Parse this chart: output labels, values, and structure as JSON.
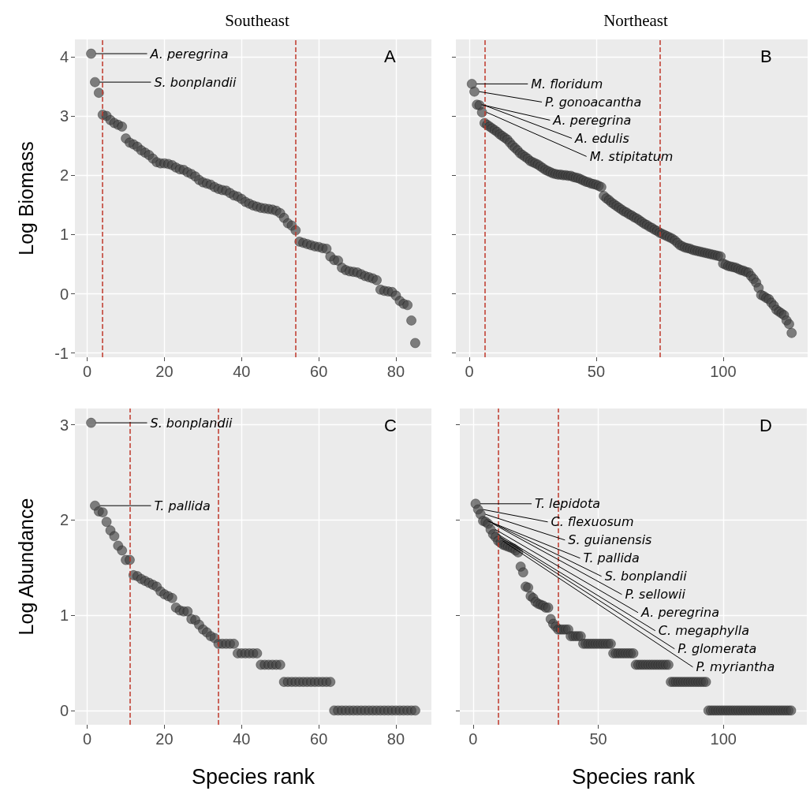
{
  "chart_data": [
    {
      "type": "scatter",
      "title": "Southeast",
      "ylabel": "Log Biomass",
      "xlim": [
        -3.2,
        89.2
      ],
      "xticks": [
        0,
        20,
        40,
        60,
        80
      ],
      "ylim": [
        -1.07,
        4.29
      ],
      "yticks": [
        -1,
        0,
        1,
        2,
        3,
        4
      ],
      "grid": true,
      "marker": "circle",
      "annotations": [
        "A",
        {
          "text": "A. peregrina",
          "x": 1,
          "y": 4.05
        },
        {
          "text": "S. bonplandii",
          "x": 2,
          "y": 3.57
        }
      ],
      "ref_lines": [
        {
          "axis": "x",
          "value": 4,
          "color": "#c0392b",
          "line_style": "dashed"
        },
        {
          "axis": "x",
          "value": 54,
          "color": "#c0392b",
          "line_style": "dashed"
        }
      ],
      "series": [
        {
          "color": "#404040",
          "x": [
            1,
            2,
            3,
            4,
            5,
            6,
            7,
            8,
            9,
            10,
            11,
            12,
            13,
            14,
            15,
            16,
            17,
            18,
            19,
            20,
            21,
            22,
            23,
            24,
            25,
            26,
            27,
            28,
            29,
            30,
            31,
            32,
            33,
            34,
            35,
            36,
            37,
            38,
            39,
            40,
            41,
            42,
            43,
            44,
            45,
            46,
            47,
            48,
            49,
            50,
            51,
            52,
            53,
            54,
            55,
            56,
            57,
            58,
            59,
            60,
            61,
            62,
            63,
            64,
            65,
            66,
            67,
            68,
            69,
            70,
            71,
            72,
            73,
            74,
            75,
            76,
            77,
            78,
            79,
            80,
            81,
            82,
            83,
            84,
            85
          ],
          "values": [
            4.05,
            3.57,
            3.39,
            3.02,
            3.0,
            2.93,
            2.88,
            2.85,
            2.82,
            2.62,
            2.55,
            2.52,
            2.48,
            2.42,
            2.38,
            2.34,
            2.28,
            2.22,
            2.2,
            2.2,
            2.19,
            2.17,
            2.13,
            2.1,
            2.09,
            2.05,
            2.02,
            1.98,
            1.92,
            1.88,
            1.86,
            1.84,
            1.8,
            1.77,
            1.75,
            1.74,
            1.7,
            1.66,
            1.64,
            1.6,
            1.55,
            1.52,
            1.49,
            1.47,
            1.45,
            1.44,
            1.43,
            1.42,
            1.4,
            1.36,
            1.28,
            1.19,
            1.15,
            1.07,
            0.88,
            0.86,
            0.84,
            0.82,
            0.8,
            0.79,
            0.77,
            0.76,
            0.63,
            0.57,
            0.56,
            0.44,
            0.4,
            0.38,
            0.37,
            0.36,
            0.33,
            0.3,
            0.28,
            0.26,
            0.23,
            0.07,
            0.05,
            0.04,
            0.03,
            -0.03,
            -0.12,
            -0.17,
            -0.19,
            -0.45,
            -0.83
          ]
        }
      ]
    },
    {
      "type": "scatter",
      "title": "Northeast",
      "xlim": [
        -5.3,
        133.3
      ],
      "xticks": [
        0,
        50,
        100
      ],
      "ylim": [
        -1.07,
        4.29
      ],
      "yticks": [
        -1,
        0,
        1,
        2,
        3,
        4
      ],
      "tick_labels": "x",
      "grid": true,
      "marker": "circle",
      "annotations": [
        "B",
        {
          "text": "M. floridum",
          "x": 1,
          "y": 3.54
        },
        {
          "text": "P. gonoacantha",
          "x": 2,
          "y": 3.41
        },
        {
          "text": "A. peregrina",
          "x": 3,
          "y": 3.19
        },
        {
          "text": "A. edulis",
          "x": 4,
          "y": 3.18
        },
        {
          "text": "M. stipitatum",
          "x": 5,
          "y": 3.06
        }
      ],
      "ref_lines": [
        {
          "axis": "x",
          "value": 6,
          "color": "#c0392b",
          "line_style": "dashed"
        },
        {
          "axis": "x",
          "value": 75,
          "color": "#c0392b",
          "line_style": "dashed"
        }
      ],
      "series": [
        {
          "color": "#404040",
          "x": [
            1,
            2,
            3,
            4,
            5,
            6,
            7,
            8,
            9,
            10,
            11,
            12,
            13,
            14,
            15,
            16,
            17,
            18,
            19,
            20,
            21,
            22,
            23,
            24,
            25,
            26,
            27,
            28,
            29,
            30,
            31,
            32,
            33,
            34,
            35,
            36,
            37,
            38,
            39,
            40,
            41,
            42,
            43,
            44,
            45,
            46,
            47,
            48,
            49,
            50,
            51,
            52,
            53,
            54,
            55,
            56,
            57,
            58,
            59,
            60,
            61,
            62,
            63,
            64,
            65,
            66,
            67,
            68,
            69,
            70,
            71,
            72,
            73,
            74,
            75,
            76,
            77,
            78,
            79,
            80,
            81,
            82,
            83,
            84,
            85,
            86,
            87,
            88,
            89,
            90,
            91,
            92,
            93,
            94,
            95,
            96,
            97,
            98,
            99,
            100,
            101,
            102,
            103,
            104,
            105,
            106,
            107,
            108,
            109,
            110,
            111,
            112,
            113,
            114,
            115,
            116,
            117,
            118,
            119,
            120,
            121,
            122,
            123,
            124,
            125,
            126,
            127
          ],
          "values": [
            3.54,
            3.41,
            3.19,
            3.18,
            3.06,
            2.88,
            2.85,
            2.82,
            2.79,
            2.76,
            2.73,
            2.69,
            2.66,
            2.63,
            2.6,
            2.55,
            2.5,
            2.46,
            2.42,
            2.37,
            2.34,
            2.31,
            2.28,
            2.24,
            2.22,
            2.2,
            2.18,
            2.15,
            2.12,
            2.09,
            2.07,
            2.05,
            2.03,
            2.02,
            2.01,
            2.01,
            2.0,
            2.0,
            1.99,
            1.99,
            1.97,
            1.96,
            1.95,
            1.93,
            1.91,
            1.89,
            1.88,
            1.86,
            1.85,
            1.84,
            1.82,
            1.8,
            1.65,
            1.61,
            1.58,
            1.54,
            1.51,
            1.48,
            1.45,
            1.42,
            1.39,
            1.37,
            1.34,
            1.32,
            1.29,
            1.27,
            1.24,
            1.21,
            1.18,
            1.16,
            1.13,
            1.11,
            1.08,
            1.06,
            1.03,
            1.01,
            0.99,
            0.97,
            0.95,
            0.93,
            0.9,
            0.86,
            0.82,
            0.8,
            0.78,
            0.77,
            0.76,
            0.74,
            0.73,
            0.72,
            0.71,
            0.7,
            0.69,
            0.68,
            0.67,
            0.66,
            0.65,
            0.64,
            0.63,
            0.51,
            0.49,
            0.47,
            0.46,
            0.45,
            0.44,
            0.42,
            0.4,
            0.39,
            0.37,
            0.36,
            0.3,
            0.25,
            0.19,
            0.1,
            -0.02,
            -0.04,
            -0.07,
            -0.09,
            -0.15,
            -0.2,
            -0.27,
            -0.3,
            -0.33,
            -0.36,
            -0.45,
            -0.51,
            -0.66
          ]
        }
      ]
    },
    {
      "type": "scatter",
      "ylabel": "Log Abundance",
      "xlabel": "Species rank",
      "xlim": [
        -3.2,
        89.2
      ],
      "xticks": [
        0,
        20,
        40,
        60,
        80
      ],
      "ylim": [
        -0.15,
        3.17
      ],
      "yticks": [
        0,
        1,
        2,
        3
      ],
      "grid": true,
      "marker": "circle",
      "annotations": [
        "C",
        {
          "text": "S. bonplandii",
          "x": 1,
          "y": 3.02
        },
        {
          "text": "T. pallida",
          "x": 2,
          "y": 2.15
        }
      ],
      "ref_lines": [
        {
          "axis": "x",
          "value": 11,
          "color": "#c0392b",
          "line_style": "dashed"
        },
        {
          "axis": "x",
          "value": 34,
          "color": "#c0392b",
          "line_style": "dashed"
        }
      ],
      "series": [
        {
          "color": "#404040",
          "x": [
            1,
            2,
            3,
            4,
            5,
            6,
            7,
            8,
            9,
            10,
            11,
            12,
            13,
            14,
            15,
            16,
            17,
            18,
            19,
            20,
            21,
            22,
            23,
            24,
            25,
            26,
            27,
            28,
            29,
            30,
            31,
            32,
            33,
            34,
            35,
            36,
            37,
            38,
            39,
            40,
            41,
            42,
            43,
            44,
            45,
            46,
            47,
            48,
            49,
            50,
            51,
            52,
            53,
            54,
            55,
            56,
            57,
            58,
            59,
            60,
            61,
            62,
            63,
            64,
            65,
            66,
            67,
            68,
            69,
            70,
            71,
            72,
            73,
            74,
            75,
            76,
            77,
            78,
            79,
            80,
            81,
            82,
            83,
            84,
            85
          ],
          "values": [
            3.02,
            2.15,
            2.09,
            2.08,
            1.98,
            1.89,
            1.83,
            1.73,
            1.68,
            1.58,
            1.58,
            1.42,
            1.41,
            1.38,
            1.36,
            1.34,
            1.32,
            1.3,
            1.25,
            1.22,
            1.2,
            1.18,
            1.08,
            1.05,
            1.04,
            1.04,
            0.96,
            0.95,
            0.9,
            0.85,
            0.82,
            0.78,
            0.76,
            0.7,
            0.7,
            0.7,
            0.7,
            0.7,
            0.6,
            0.6,
            0.6,
            0.6,
            0.6,
            0.6,
            0.48,
            0.48,
            0.48,
            0.48,
            0.48,
            0.48,
            0.3,
            0.3,
            0.3,
            0.3,
            0.3,
            0.3,
            0.3,
            0.3,
            0.3,
            0.3,
            0.3,
            0.3,
            0.3,
            0,
            0,
            0,
            0,
            0,
            0,
            0,
            0,
            0,
            0,
            0,
            0,
            0,
            0,
            0,
            0,
            0,
            0,
            0,
            0,
            0,
            0
          ]
        }
      ]
    },
    {
      "type": "scatter",
      "xlabel": "Species rank",
      "xlim": [
        -5.3,
        133.3
      ],
      "xticks": [
        0,
        50,
        100
      ],
      "ylim": [
        -0.15,
        3.17
      ],
      "yticks": [
        0,
        1,
        2,
        3
      ],
      "tick_labels": "x",
      "grid": true,
      "marker": "circle",
      "annotations": [
        "D",
        {
          "text": "T. lepidota",
          "x": 1,
          "y": 2.17
        },
        {
          "text": "C. flexuosum",
          "x": 2,
          "y": 2.11
        },
        {
          "text": "S. guianensis",
          "x": 3,
          "y": 2.06
        },
        {
          "text": "T. pallida",
          "x": 4,
          "y": 1.99
        },
        {
          "text": "S. bonplandii",
          "x": 5,
          "y": 1.98
        },
        {
          "text": "P. sellowii",
          "x": 6,
          "y": 1.96
        },
        {
          "text": "A. peregrina",
          "x": 7,
          "y": 1.9
        },
        {
          "text": "C. megaphylla",
          "x": 8,
          "y": 1.85
        },
        {
          "text": "P. glomerata",
          "x": 9,
          "y": 1.82
        },
        {
          "text": "P. myriantha",
          "x": 10,
          "y": 1.78
        }
      ],
      "ref_lines": [
        {
          "axis": "x",
          "value": 10,
          "color": "#c0392b",
          "line_style": "dashed"
        },
        {
          "axis": "x",
          "value": 34,
          "color": "#c0392b",
          "line_style": "dashed"
        }
      ],
      "series": [
        {
          "color": "#404040",
          "x": [
            1,
            2,
            3,
            4,
            5,
            6,
            7,
            8,
            9,
            10,
            11,
            12,
            13,
            14,
            15,
            16,
            17,
            18,
            19,
            20,
            21,
            22,
            23,
            24,
            25,
            26,
            27,
            28,
            29,
            30,
            31,
            32,
            33,
            34,
            35,
            36,
            37,
            38,
            39,
            40,
            41,
            42,
            43,
            44,
            45,
            46,
            47,
            48,
            49,
            50,
            51,
            52,
            53,
            54,
            55,
            56,
            57,
            58,
            59,
            60,
            61,
            62,
            63,
            64,
            65,
            66,
            67,
            68,
            69,
            70,
            71,
            72,
            73,
            74,
            75,
            76,
            77,
            78,
            79,
            80,
            81,
            82,
            83,
            84,
            85,
            86,
            87,
            88,
            89,
            90,
            91,
            92,
            93,
            94,
            95,
            96,
            97,
            98,
            99,
            100,
            101,
            102,
            103,
            104,
            105,
            106,
            107,
            108,
            109,
            110,
            111,
            112,
            113,
            114,
            115,
            116,
            117,
            118,
            119,
            120,
            121,
            122,
            123,
            124,
            125,
            126,
            127
          ],
          "values": [
            2.17,
            2.11,
            2.06,
            1.99,
            1.98,
            1.96,
            1.9,
            1.85,
            1.82,
            1.78,
            1.76,
            1.74,
            1.73,
            1.72,
            1.71,
            1.7,
            1.68,
            1.66,
            1.51,
            1.45,
            1.3,
            1.29,
            1.2,
            1.18,
            1.14,
            1.12,
            1.11,
            1.1,
            1.08,
            1.08,
            0.96,
            0.91,
            0.88,
            0.85,
            0.85,
            0.85,
            0.85,
            0.85,
            0.78,
            0.78,
            0.78,
            0.78,
            0.78,
            0.7,
            0.7,
            0.7,
            0.7,
            0.7,
            0.7,
            0.7,
            0.7,
            0.7,
            0.7,
            0.7,
            0.7,
            0.6,
            0.6,
            0.6,
            0.6,
            0.6,
            0.6,
            0.6,
            0.6,
            0.6,
            0.48,
            0.48,
            0.48,
            0.48,
            0.48,
            0.48,
            0.48,
            0.48,
            0.48,
            0.48,
            0.48,
            0.48,
            0.48,
            0.48,
            0.3,
            0.3,
            0.3,
            0.3,
            0.3,
            0.3,
            0.3,
            0.3,
            0.3,
            0.3,
            0.3,
            0.3,
            0.3,
            0.3,
            0.3,
            0,
            0,
            0,
            0,
            0,
            0,
            0,
            0,
            0,
            0,
            0,
            0,
            0,
            0,
            0,
            0,
            0,
            0,
            0,
            0,
            0,
            0,
            0,
            0,
            0,
            0,
            0,
            0,
            0,
            0,
            0,
            0,
            0,
            0
          ]
        }
      ]
    }
  ]
}
